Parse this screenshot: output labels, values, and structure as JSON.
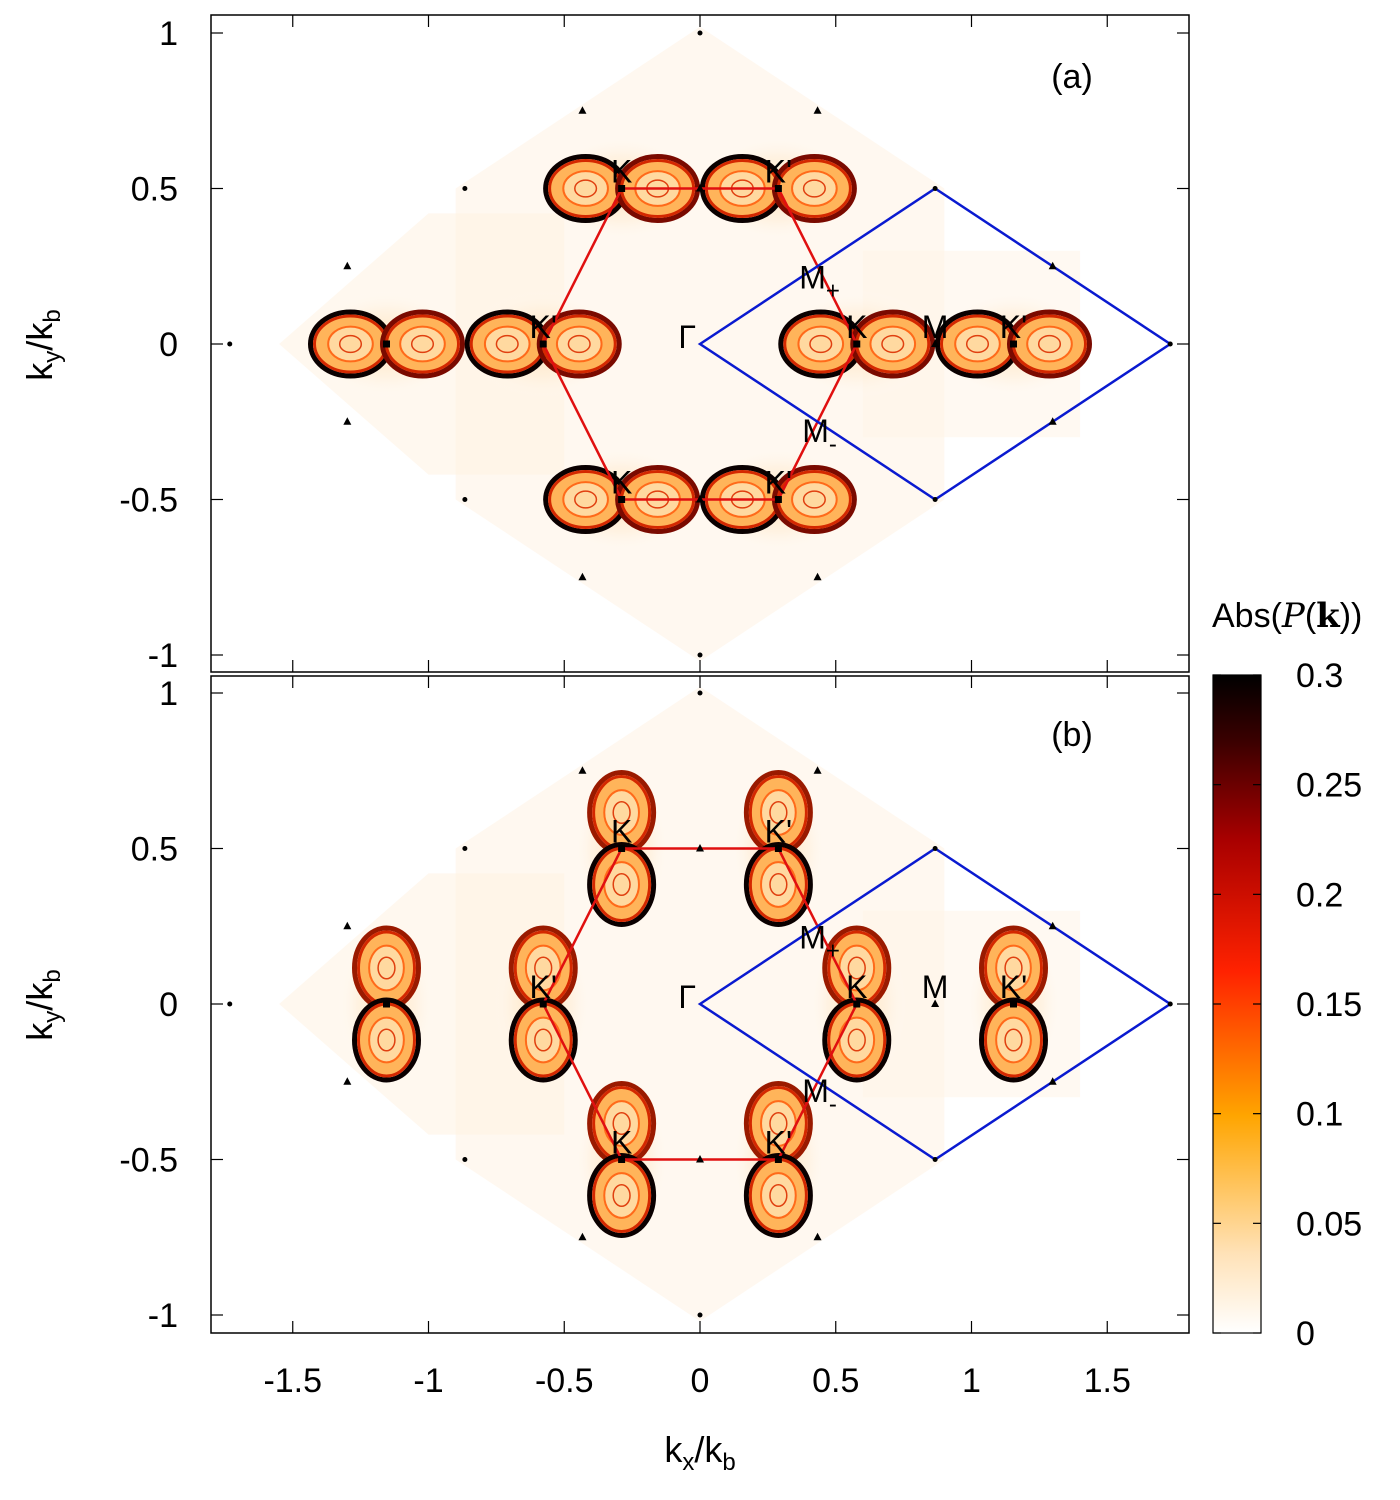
{
  "chart_data": {
    "type": "heatmap",
    "xlabel": "k_x/k_b",
    "ylabel": "k_y/k_b",
    "xlim": [
      -1.8,
      1.8
    ],
    "ylim": [
      -1.05,
      1.05
    ],
    "xticks": [
      -1.5,
      -1,
      -0.5,
      0,
      0.5,
      1,
      1.5
    ],
    "xtick_labels": [
      "-1.5",
      "-1",
      "-0.5",
      "0",
      "0.5",
      "1",
      "1.5"
    ],
    "yticks": [
      -1,
      -0.5,
      0,
      0.5,
      1
    ],
    "ytick_labels": [
      "-1",
      "-0.5",
      "0",
      "0.5",
      "1"
    ],
    "colorbar": {
      "title": "Abs(P(k))",
      "range": [
        0,
        0.3
      ],
      "ticks": [
        0,
        0.05,
        0.1,
        0.15,
        0.2,
        0.25,
        0.3
      ],
      "tick_labels": [
        "0",
        "0.05",
        "0.1",
        "0.15",
        "0.2",
        "0.25",
        "0.3"
      ],
      "colormap": [
        "#ffffff",
        "#ffd9a0",
        "#ffa500",
        "#ff2a00",
        "#b00000",
        "#5a0000",
        "#000000"
      ]
    },
    "path_color": "#e01010",
    "cell_color": "#0a1ad0",
    "hexagon_path": [
      [
        0.2887,
        0.5
      ],
      [
        0.5774,
        0
      ],
      [
        0.2887,
        -0.5
      ],
      [
        -0.2887,
        -0.5
      ],
      [
        -0.5774,
        0
      ],
      [
        -0.2887,
        0.5
      ]
    ],
    "unit_cell": [
      [
        0,
        0
      ],
      [
        0.866,
        0.5
      ],
      [
        1.732,
        0
      ],
      [
        0.866,
        -0.5
      ]
    ],
    "square_markers": [
      [
        0.2887,
        0.5
      ],
      [
        -0.2887,
        0.5
      ],
      [
        0.5774,
        0
      ],
      [
        -0.5774,
        0
      ],
      [
        0.2887,
        -0.5
      ],
      [
        -0.2887,
        -0.5
      ],
      [
        1.1547,
        0
      ],
      [
        -1.1547,
        0
      ]
    ],
    "triangle_markers": [
      [
        0.433,
        0.75
      ],
      [
        -0.433,
        0.75
      ],
      [
        0.433,
        -0.75
      ],
      [
        -0.433,
        -0.75
      ],
      [
        1.299,
        0.25
      ],
      [
        1.299,
        -0.25
      ],
      [
        -1.299,
        0.25
      ],
      [
        -1.299,
        -0.25
      ],
      [
        0.866,
        0
      ],
      [
        0,
        0.5
      ],
      [
        0,
        -0.5
      ]
    ],
    "dot_markers": [
      [
        0,
        1
      ],
      [
        0,
        -1
      ],
      [
        0.866,
        0.5
      ],
      [
        0.866,
        -0.5
      ],
      [
        -0.866,
        0.5
      ],
      [
        -0.866,
        -0.5
      ],
      [
        1.732,
        0
      ],
      [
        -1.732,
        0
      ]
    ],
    "panels": [
      {
        "tag": "(a)",
        "lobe_orientation": "horizontal",
        "points": [
          {
            "label": "K",
            "x": -0.2887,
            "y": 0.5
          },
          {
            "label": "K'",
            "x": 0.2887,
            "y": 0.5
          },
          {
            "label": "K'",
            "x": -0.5774,
            "y": 0
          },
          {
            "label": "Γ",
            "x": 0,
            "y": 0
          },
          {
            "label": "K",
            "x": 0.5774,
            "y": 0
          },
          {
            "label": "M",
            "x": 0.866,
            "y": 0
          },
          {
            "label": "K'",
            "x": 1.1547,
            "y": 0
          },
          {
            "label": "K",
            "x": -0.2887,
            "y": -0.5
          },
          {
            "label": "K'",
            "x": 0.2887,
            "y": -0.5
          },
          {
            "label": "M",
            "sub": "+",
            "x": 0.433,
            "y": 0.25
          },
          {
            "label": "M",
            "sub": "-",
            "x": 0.433,
            "y": -0.25
          }
        ],
        "hotspots": [
          {
            "x": -1.1547,
            "y": 0
          },
          {
            "x": -0.5774,
            "y": 0
          },
          {
            "x": 0.5774,
            "y": 0
          },
          {
            "x": 1.1547,
            "y": 0
          },
          {
            "x": -0.2887,
            "y": 0.5
          },
          {
            "x": 0.2887,
            "y": 0.5
          },
          {
            "x": -0.2887,
            "y": -0.5
          },
          {
            "x": 0.2887,
            "y": -0.5
          }
        ]
      },
      {
        "tag": "(b)",
        "lobe_orientation": "vertical",
        "points": [
          {
            "label": "K",
            "x": -0.2887,
            "y": 0.5
          },
          {
            "label": "K'",
            "x": 0.2887,
            "y": 0.5
          },
          {
            "label": "K'",
            "x": -0.5774,
            "y": 0
          },
          {
            "label": "Γ",
            "x": 0,
            "y": 0
          },
          {
            "label": "K",
            "x": 0.5774,
            "y": 0
          },
          {
            "label": "M",
            "x": 0.866,
            "y": 0
          },
          {
            "label": "K'",
            "x": 1.1547,
            "y": 0
          },
          {
            "label": "K",
            "x": -0.2887,
            "y": -0.5
          },
          {
            "label": "K'",
            "x": 0.2887,
            "y": -0.5
          },
          {
            "label": "M",
            "sub": "+",
            "x": 0.433,
            "y": 0.25
          },
          {
            "label": "M",
            "sub": "-",
            "x": 0.433,
            "y": -0.25
          }
        ],
        "hotspots": [
          {
            "x": -1.1547,
            "y": 0
          },
          {
            "x": -0.5774,
            "y": 0
          },
          {
            "x": 0.5774,
            "y": 0
          },
          {
            "x": 1.1547,
            "y": 0
          },
          {
            "x": -0.2887,
            "y": 0.5
          },
          {
            "x": 0.2887,
            "y": 0.5
          },
          {
            "x": -0.2887,
            "y": -0.5
          },
          {
            "x": 0.2887,
            "y": -0.5
          }
        ]
      }
    ]
  }
}
